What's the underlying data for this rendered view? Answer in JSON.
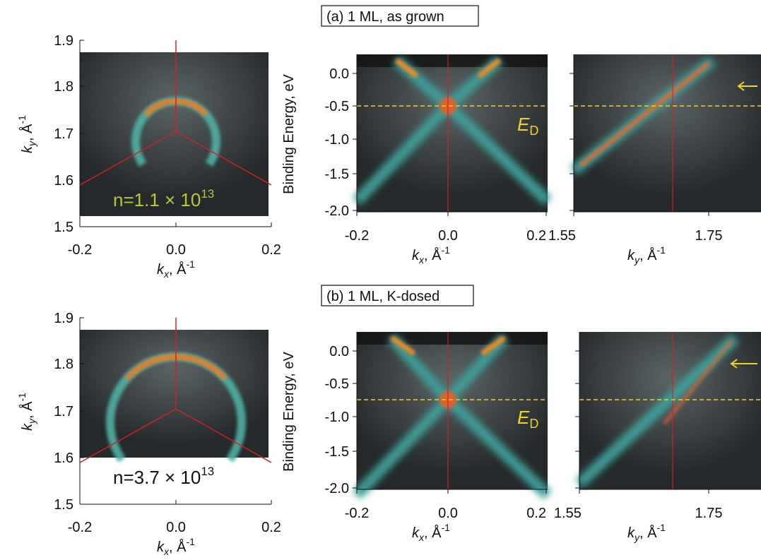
{
  "panels": [
    {
      "label": "(a) 1 ML, as grown",
      "fermi": {
        "yticks": [
          "1.9",
          "1.8",
          "1.7",
          "1.6",
          "1.5"
        ],
        "xticks": [
          "-0.2",
          "0.0",
          "0.2"
        ],
        "xlabel": {
          "k": "k",
          "sub": "x",
          "unit": ", Å",
          "sup": "-1"
        },
        "ylabel": {
          "k": "k",
          "sub": "y",
          "unit": ", Å",
          "sup": "-1"
        },
        "density": "n=1.1 × 10",
        "density_exp": "13"
      },
      "kx_cut": {
        "ylabel": "Binding Energy, eV",
        "yticks": [
          "0.0",
          "-0.5",
          "-1.0",
          "-1.5",
          "-2.0"
        ],
        "xticks": [
          "-0.2",
          "0.0",
          "0.2"
        ],
        "xlabel": {
          "k": "k",
          "sub": "x",
          "unit": ", Å",
          "sup": "-1"
        },
        "annotation": "E",
        "annotation_sub": "D"
      },
      "ky_cut": {
        "xticks": [
          "1.55",
          "1.75"
        ],
        "xlabel": {
          "k": "k",
          "sub": "y",
          "unit": ", Å",
          "sup": "-1"
        }
      }
    },
    {
      "label": "(b) 1 ML, K-dosed",
      "fermi": {
        "yticks": [
          "1.9",
          "1.8",
          "1.7",
          "1.6",
          "1.5"
        ],
        "xticks": [
          "-0.2",
          "0.0",
          "0.2"
        ],
        "xlabel": {
          "k": "k",
          "sub": "x",
          "unit": ", Å",
          "sup": "-1"
        },
        "ylabel": {
          "k": "k",
          "sub": "y",
          "unit": ", Å",
          "sup": "-1"
        },
        "density": "n=3.7 × 10",
        "density_exp": "13"
      },
      "kx_cut": {
        "ylabel": "Binding Energy, eV",
        "yticks": [
          "0.0",
          "-0.5",
          "-1.0",
          "-1.5",
          "-2.0"
        ],
        "xticks": [
          "-0.2",
          "0.0",
          "0.2"
        ],
        "xlabel": {
          "k": "k",
          "sub": "x",
          "unit": ", Å",
          "sup": "-1"
        },
        "annotation": "E",
        "annotation_sub": "D"
      },
      "ky_cut": {
        "xticks": [
          "1.55",
          "1.75"
        ],
        "xlabel": {
          "k": "k",
          "sub": "y",
          "unit": ", Å",
          "sup": "-1"
        }
      }
    }
  ]
}
